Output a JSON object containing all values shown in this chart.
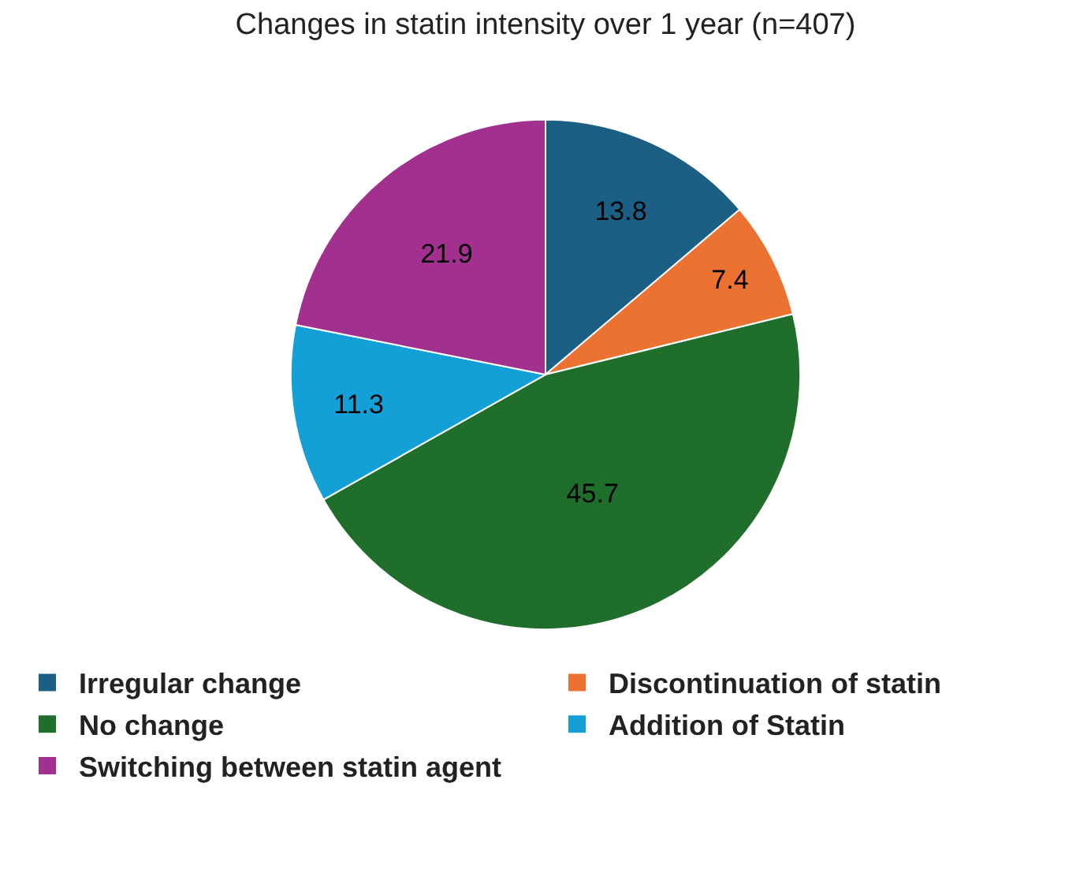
{
  "chart_data": {
    "type": "pie",
    "title": "Changes in statin intensity over 1 year (n=407)",
    "categories": [
      "Irregular change",
      "Discontinuation of statin",
      "No change",
      "Addition of Statin",
      "Switching between statin agent"
    ],
    "values": [
      13.8,
      7.4,
      45.7,
      11.3,
      21.9
    ],
    "colors": [
      "#1c5f85",
      "#ec7232",
      "#1f6e2b",
      "#12a0d7",
      "#a1308f"
    ],
    "data_labels": true,
    "legend": "bottom"
  }
}
